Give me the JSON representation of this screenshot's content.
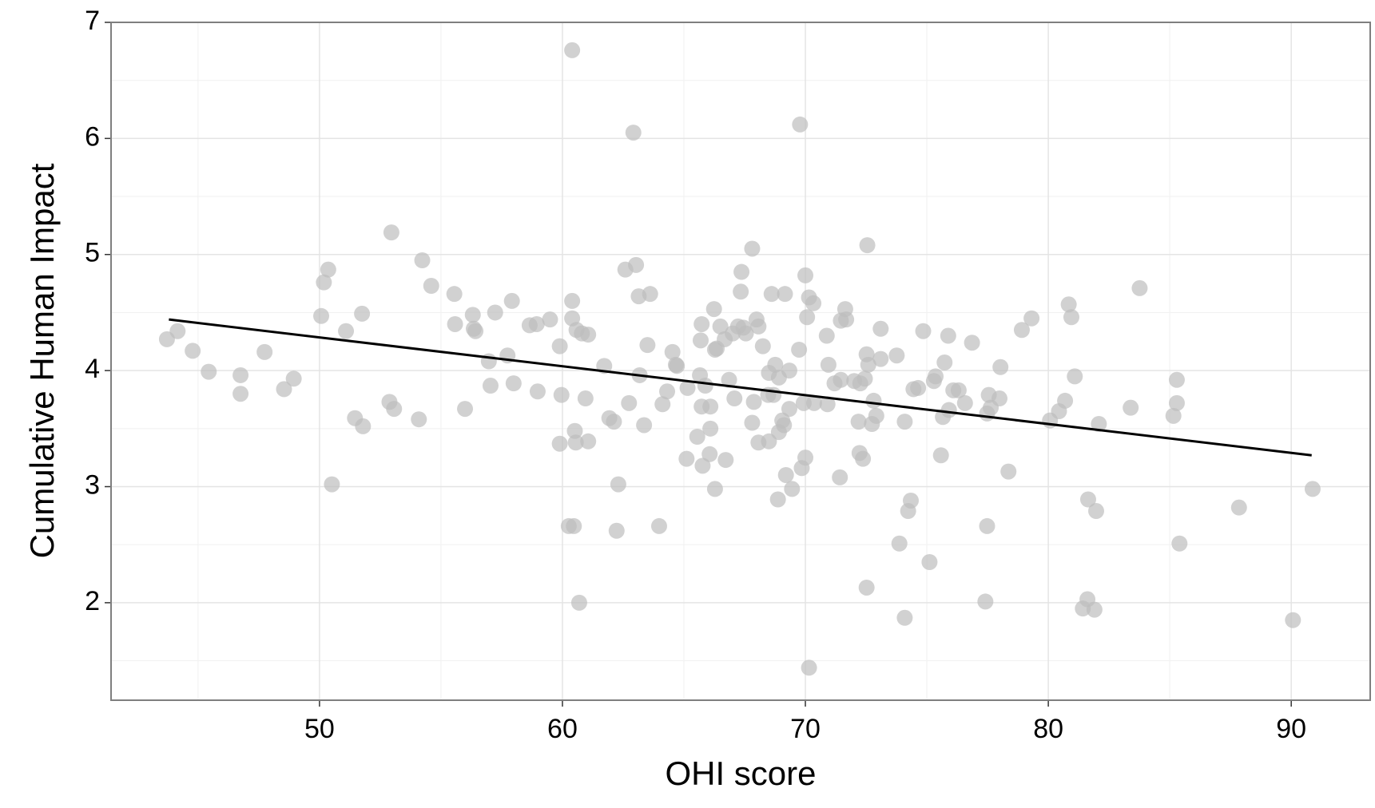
{
  "chart_data": {
    "type": "scatter",
    "x_label": "OHI score",
    "y_label": "Cumulative Human Impact",
    "xlim": [
      41.42,
      93.25
    ],
    "ylim": [
      1.16,
      7.0
    ],
    "xticks": [
      50,
      60,
      70,
      80,
      90
    ],
    "yticks": [
      2,
      3,
      4,
      5,
      6,
      7
    ],
    "x_minor_grid": [
      45,
      55,
      65,
      75,
      85
    ],
    "y_minor_grid": [
      1.5,
      2.5,
      3.5,
      4.5,
      5.5,
      6.5
    ],
    "grid": true,
    "color": "#bdbdbd",
    "line_color": "#000000",
    "x": [
      43.72,
      44.16,
      44.78,
      45.44,
      46.75,
      46.75,
      47.74,
      48.54,
      48.94,
      50.07,
      50.18,
      50.36,
      50.51,
      51.09,
      51.46,
      51.75,
      51.79,
      52.96,
      52.88,
      53.07,
      54.09,
      54.23,
      54.6,
      55.55,
      55.58,
      55.99,
      56.31,
      56.35,
      56.42,
      56.97,
      57.04,
      57.23,
      57.74,
      57.92,
      57.99,
      58.65,
      58.94,
      58.98,
      59.49,
      59.89,
      59.89,
      59.96,
      60.26,
      60.4,
      60.4,
      60.4,
      60.47,
      60.51,
      60.55,
      60.58,
      60.69,
      60.8,
      60.95,
      61.06,
      61.06,
      61.72,
      61.93,
      62.12,
      62.23,
      62.3,
      62.59,
      62.74,
      62.92,
      63.03,
      63.14,
      63.18,
      63.36,
      63.5,
      63.61,
      63.98,
      64.12,
      64.31,
      64.53,
      64.67,
      64.71,
      65.11,
      65.15,
      65.55,
      65.66,
      65.69,
      65.73,
      65.73,
      65.77,
      65.88,
      66.06,
      66.09,
      66.09,
      66.24,
      66.28,
      66.28,
      66.35,
      66.5,
      66.68,
      66.72,
      66.86,
      67.01,
      67.08,
      67.23,
      67.34,
      67.37,
      67.45,
      67.55,
      67.81,
      67.81,
      67.88,
      67.99,
      68.07,
      68.07,
      68.25,
      68.47,
      68.5,
      68.5,
      68.61,
      68.69,
      68.76,
      68.87,
      68.91,
      68.91,
      69.05,
      69.12,
      69.16,
      69.2,
      69.34,
      69.34,
      69.45,
      69.74,
      69.78,
      69.85,
      69.93,
      70.0,
      70.0,
      70.07,
      70.15,
      70.15,
      70.33,
      70.36,
      70.88,
      70.91,
      70.95,
      71.2,
      71.42,
      71.46,
      71.46,
      71.64,
      71.68,
      72.01,
      72.19,
      72.23,
      72.26,
      72.37,
      72.45,
      72.52,
      72.52,
      72.55,
      72.59,
      72.74,
      72.81,
      72.92,
      73.1,
      73.1,
      73.76,
      73.87,
      74.09,
      74.09,
      74.23,
      74.34,
      74.45,
      74.64,
      74.85,
      75.11,
      75.29,
      75.36,
      75.58,
      75.66,
      75.73,
      75.88,
      75.91,
      76.09,
      76.31,
      76.57,
      76.86,
      77.41,
      77.48,
      77.48,
      77.55,
      77.63,
      77.99,
      78.03,
      78.36,
      78.91,
      79.31,
      80.07,
      80.44,
      80.69,
      80.84,
      80.95,
      81.09,
      81.42,
      81.61,
      81.64,
      81.9,
      81.97,
      82.08,
      83.39,
      83.76,
      85.15,
      85.29,
      85.29,
      85.4,
      87.85,
      90.07,
      90.88
    ],
    "y": [
      4.27,
      4.34,
      4.17,
      3.99,
      3.96,
      3.8,
      4.16,
      3.84,
      3.93,
      4.47,
      4.76,
      4.87,
      3.02,
      4.34,
      3.59,
      4.49,
      3.52,
      5.19,
      3.73,
      3.67,
      3.58,
      4.95,
      4.73,
      4.66,
      4.4,
      3.67,
      4.48,
      4.36,
      4.34,
      4.08,
      3.87,
      4.5,
      4.13,
      4.6,
      3.89,
      4.39,
      4.4,
      3.82,
      4.44,
      4.21,
      3.37,
      3.79,
      2.66,
      6.76,
      4.6,
      4.45,
      2.66,
      3.48,
      3.38,
      4.35,
      2.0,
      4.32,
      3.76,
      4.31,
      3.39,
      4.04,
      3.59,
      3.56,
      2.62,
      3.02,
      4.87,
      3.72,
      6.05,
      4.91,
      4.64,
      3.96,
      3.53,
      4.22,
      4.66,
      2.66,
      3.71,
      3.82,
      4.16,
      4.05,
      4.04,
      3.24,
      3.85,
      3.43,
      3.96,
      4.26,
      4.4,
      3.69,
      3.18,
      3.87,
      3.28,
      3.5,
      3.69,
      4.53,
      4.18,
      2.98,
      4.19,
      4.38,
      4.27,
      3.23,
      3.92,
      4.32,
      3.76,
      4.38,
      4.68,
      4.85,
      4.37,
      4.32,
      5.05,
      3.55,
      3.73,
      4.44,
      4.38,
      3.38,
      4.21,
      3.79,
      3.98,
      3.39,
      4.66,
      3.79,
      4.05,
      2.89,
      3.47,
      3.94,
      3.57,
      3.53,
      4.66,
      3.1,
      3.67,
      4.0,
      2.98,
      4.18,
      6.12,
      3.16,
      3.72,
      4.82,
      3.25,
      4.46,
      1.44,
      4.63,
      4.58,
      3.72,
      4.3,
      3.71,
      4.05,
      3.89,
      3.08,
      3.92,
      4.43,
      4.53,
      4.44,
      3.91,
      3.56,
      3.29,
      3.89,
      3.24,
      3.93,
      2.13,
      4.14,
      5.08,
      4.05,
      3.54,
      3.74,
      3.61,
      4.36,
      4.1,
      4.13,
      2.51,
      3.56,
      1.87,
      2.79,
      2.88,
      3.84,
      3.85,
      4.34,
      2.35,
      3.91,
      3.95,
      3.27,
      3.6,
      4.07,
      4.3,
      3.66,
      3.83,
      3.83,
      3.72,
      4.24,
      2.01,
      2.66,
      3.63,
      3.79,
      3.68,
      3.76,
      4.03,
      3.13,
      4.35,
      4.45,
      3.57,
      3.65,
      3.74,
      4.57,
      4.46,
      3.95,
      1.95,
      2.03,
      2.89,
      1.94,
      2.79,
      3.54,
      3.68,
      4.71,
      3.61,
      3.72,
      3.92,
      2.51,
      2.82,
      1.85,
      2.98
    ],
    "trend": {
      "x": [
        43.8,
        90.84
      ],
      "y": [
        4.44,
        3.27
      ]
    }
  }
}
